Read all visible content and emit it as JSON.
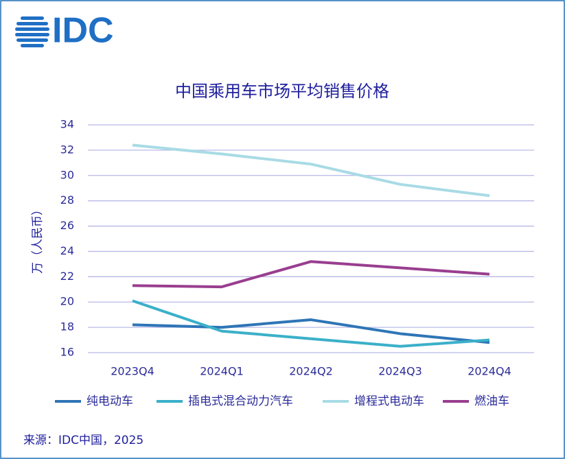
{
  "logo": "IDC",
  "source": "来源：IDC中国，2025",
  "chart_data": {
    "type": "line",
    "title": "中国乘用车市场平均销售价格",
    "y_label": "万（人民币）",
    "categories": [
      "2023Q4",
      "2024Q1",
      "2024Q2",
      "2024Q3",
      "2024Q4"
    ],
    "series": [
      {
        "name": "纯电动车",
        "color": "#2e75b6",
        "values": [
          18.2,
          18.0,
          18.6,
          17.5,
          16.8
        ]
      },
      {
        "name": "插电式混合动力汽车",
        "color": "#3bb0c9",
        "values": [
          20.1,
          17.7,
          17.1,
          16.5,
          17.0
        ]
      },
      {
        "name": "增程式电动车",
        "color": "#a8dbe5",
        "values": [
          32.4,
          31.7,
          30.9,
          29.3,
          28.4
        ]
      },
      {
        "name": "燃油车",
        "color": "#993e8f",
        "values": [
          21.3,
          21.2,
          23.2,
          22.7,
          22.2
        ]
      }
    ],
    "ylim": [
      16,
      34
    ],
    "yticks": [
      16,
      18,
      20,
      22,
      24,
      26,
      28,
      30,
      32,
      34
    ],
    "grid": true,
    "legend": "bottom"
  }
}
